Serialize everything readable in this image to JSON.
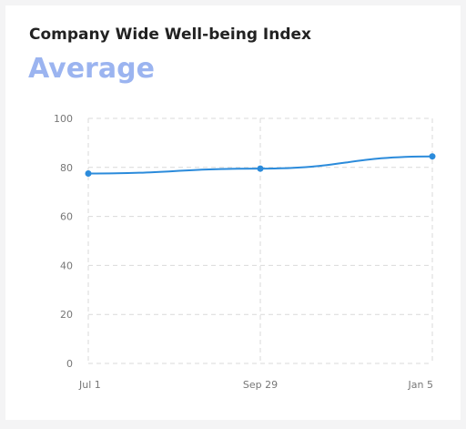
{
  "header": {
    "title": "Company Wide Well-being Index",
    "subtitle": "Average"
  },
  "colors": {
    "subtitle": "#9bb4f0",
    "series": "#2b8bdb",
    "grid": "#d9d9d9",
    "background": "#f4f4f5",
    "card": "#ffffff"
  },
  "chart_data": {
    "type": "line",
    "title": "Company Wide Well-being Index",
    "subtitle": "Average",
    "x": [
      "Jul 1",
      "Sep 29",
      "Jan 5"
    ],
    "series": [
      {
        "values": [
          77.5,
          79.5,
          84.5
        ]
      }
    ],
    "ylim": [
      0,
      100
    ],
    "yticks": [
      0,
      20,
      40,
      60,
      80,
      100
    ],
    "xlabel": "",
    "ylabel": "",
    "grid": true,
    "legend": "none"
  }
}
